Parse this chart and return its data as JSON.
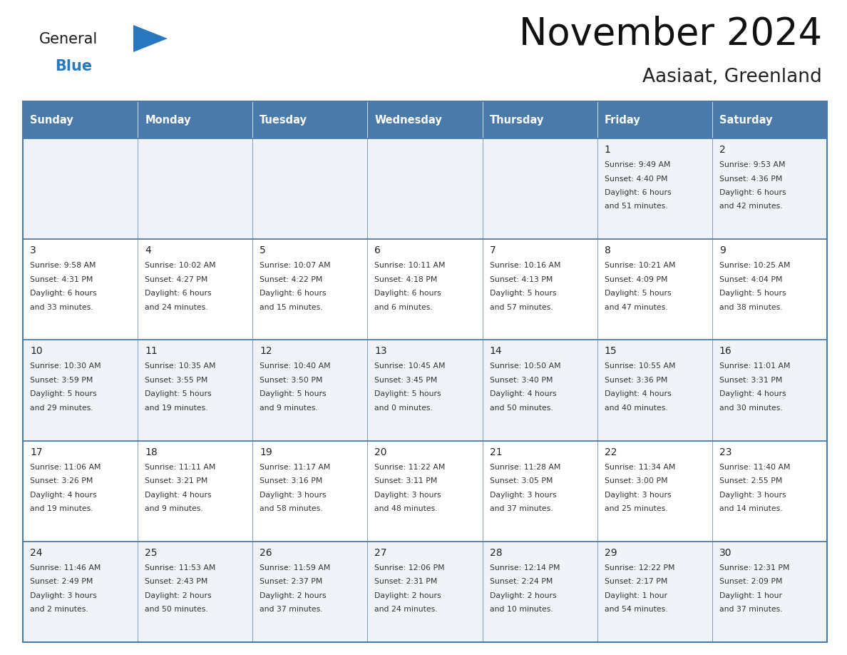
{
  "title": "November 2024",
  "subtitle": "Aasiaat, Greenland",
  "header_bg": "#4a7aaa",
  "header_text_color": "#ffffff",
  "cell_bg_odd": "#f0f4f8",
  "cell_bg_even": "#ffffff",
  "day_number_color": "#222222",
  "cell_text_color": "#333333",
  "border_color": "#4a7aaa",
  "line_color": "#4a7aaa",
  "days_of_week": [
    "Sunday",
    "Monday",
    "Tuesday",
    "Wednesday",
    "Thursday",
    "Friday",
    "Saturday"
  ],
  "weeks": [
    [
      {
        "day": "",
        "sunrise": "",
        "sunset": "",
        "daylight": ""
      },
      {
        "day": "",
        "sunrise": "",
        "sunset": "",
        "daylight": ""
      },
      {
        "day": "",
        "sunrise": "",
        "sunset": "",
        "daylight": ""
      },
      {
        "day": "",
        "sunrise": "",
        "sunset": "",
        "daylight": ""
      },
      {
        "day": "",
        "sunrise": "",
        "sunset": "",
        "daylight": ""
      },
      {
        "day": "1",
        "sunrise": "9:49 AM",
        "sunset": "4:40 PM",
        "daylight": "6 hours\nand 51 minutes."
      },
      {
        "day": "2",
        "sunrise": "9:53 AM",
        "sunset": "4:36 PM",
        "daylight": "6 hours\nand 42 minutes."
      }
    ],
    [
      {
        "day": "3",
        "sunrise": "9:58 AM",
        "sunset": "4:31 PM",
        "daylight": "6 hours\nand 33 minutes."
      },
      {
        "day": "4",
        "sunrise": "10:02 AM",
        "sunset": "4:27 PM",
        "daylight": "6 hours\nand 24 minutes."
      },
      {
        "day": "5",
        "sunrise": "10:07 AM",
        "sunset": "4:22 PM",
        "daylight": "6 hours\nand 15 minutes."
      },
      {
        "day": "6",
        "sunrise": "10:11 AM",
        "sunset": "4:18 PM",
        "daylight": "6 hours\nand 6 minutes."
      },
      {
        "day": "7",
        "sunrise": "10:16 AM",
        "sunset": "4:13 PM",
        "daylight": "5 hours\nand 57 minutes."
      },
      {
        "day": "8",
        "sunrise": "10:21 AM",
        "sunset": "4:09 PM",
        "daylight": "5 hours\nand 47 minutes."
      },
      {
        "day": "9",
        "sunrise": "10:25 AM",
        "sunset": "4:04 PM",
        "daylight": "5 hours\nand 38 minutes."
      }
    ],
    [
      {
        "day": "10",
        "sunrise": "10:30 AM",
        "sunset": "3:59 PM",
        "daylight": "5 hours\nand 29 minutes."
      },
      {
        "day": "11",
        "sunrise": "10:35 AM",
        "sunset": "3:55 PM",
        "daylight": "5 hours\nand 19 minutes."
      },
      {
        "day": "12",
        "sunrise": "10:40 AM",
        "sunset": "3:50 PM",
        "daylight": "5 hours\nand 9 minutes."
      },
      {
        "day": "13",
        "sunrise": "10:45 AM",
        "sunset": "3:45 PM",
        "daylight": "5 hours\nand 0 minutes."
      },
      {
        "day": "14",
        "sunrise": "10:50 AM",
        "sunset": "3:40 PM",
        "daylight": "4 hours\nand 50 minutes."
      },
      {
        "day": "15",
        "sunrise": "10:55 AM",
        "sunset": "3:36 PM",
        "daylight": "4 hours\nand 40 minutes."
      },
      {
        "day": "16",
        "sunrise": "11:01 AM",
        "sunset": "3:31 PM",
        "daylight": "4 hours\nand 30 minutes."
      }
    ],
    [
      {
        "day": "17",
        "sunrise": "11:06 AM",
        "sunset": "3:26 PM",
        "daylight": "4 hours\nand 19 minutes."
      },
      {
        "day": "18",
        "sunrise": "11:11 AM",
        "sunset": "3:21 PM",
        "daylight": "4 hours\nand 9 minutes."
      },
      {
        "day": "19",
        "sunrise": "11:17 AM",
        "sunset": "3:16 PM",
        "daylight": "3 hours\nand 58 minutes."
      },
      {
        "day": "20",
        "sunrise": "11:22 AM",
        "sunset": "3:11 PM",
        "daylight": "3 hours\nand 48 minutes."
      },
      {
        "day": "21",
        "sunrise": "11:28 AM",
        "sunset": "3:05 PM",
        "daylight": "3 hours\nand 37 minutes."
      },
      {
        "day": "22",
        "sunrise": "11:34 AM",
        "sunset": "3:00 PM",
        "daylight": "3 hours\nand 25 minutes."
      },
      {
        "day": "23",
        "sunrise": "11:40 AM",
        "sunset": "2:55 PM",
        "daylight": "3 hours\nand 14 minutes."
      }
    ],
    [
      {
        "day": "24",
        "sunrise": "11:46 AM",
        "sunset": "2:49 PM",
        "daylight": "3 hours\nand 2 minutes."
      },
      {
        "day": "25",
        "sunrise": "11:53 AM",
        "sunset": "2:43 PM",
        "daylight": "2 hours\nand 50 minutes."
      },
      {
        "day": "26",
        "sunrise": "11:59 AM",
        "sunset": "2:37 PM",
        "daylight": "2 hours\nand 37 minutes."
      },
      {
        "day": "27",
        "sunrise": "12:06 PM",
        "sunset": "2:31 PM",
        "daylight": "2 hours\nand 24 minutes."
      },
      {
        "day": "28",
        "sunrise": "12:14 PM",
        "sunset": "2:24 PM",
        "daylight": "2 hours\nand 10 minutes."
      },
      {
        "day": "29",
        "sunrise": "12:22 PM",
        "sunset": "2:17 PM",
        "daylight": "1 hour\nand 54 minutes."
      },
      {
        "day": "30",
        "sunrise": "12:31 PM",
        "sunset": "2:09 PM",
        "daylight": "1 hour\nand 37 minutes."
      }
    ]
  ],
  "logo_color_general": "#1a1a1a",
  "logo_color_blue": "#2878c0",
  "logo_triangle_color": "#2878c0",
  "fig_width": 11.88,
  "fig_height": 9.18,
  "dpi": 100
}
